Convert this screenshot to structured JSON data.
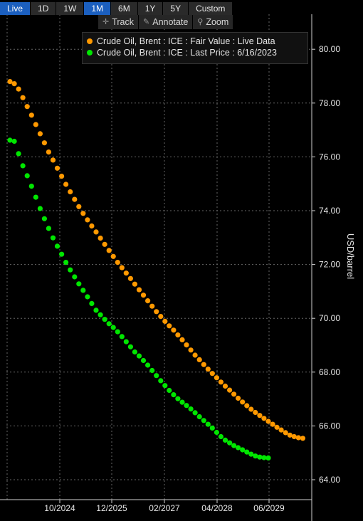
{
  "toolbar": {
    "buttons": [
      "Live",
      "1D",
      "1W",
      "1M",
      "6M",
      "1Y",
      "5Y",
      "Custom"
    ],
    "active": [
      "Live",
      "1M"
    ]
  },
  "tools": {
    "track": "Track",
    "annotate": "Annotate",
    "zoom": "Zoom"
  },
  "colors": {
    "series1": "#ff9900",
    "series2": "#00e600",
    "grid": "#666666"
  },
  "chart_data": {
    "type": "scatter",
    "ylabel": "USD/barrel",
    "ylim": [
      63.5,
      81.5
    ],
    "yticks": [
      "64.00",
      "66.00",
      "68.00",
      "70.00",
      "72.00",
      "74.00",
      "76.00",
      "78.00",
      "80.00"
    ],
    "ytick_values": [
      64,
      66,
      68,
      70,
      72,
      74,
      76,
      78,
      80
    ],
    "xticks": [
      "10/2024",
      "12/2025",
      "02/2027",
      "04/2028",
      "06/2029"
    ],
    "grid": true,
    "legend": "top",
    "x_start": "07/2023",
    "x_step": "1 month",
    "series": [
      {
        "name": "Crude Oil, Brent : ICE : Fair Value : Live Data",
        "values": [
          78.8,
          78.72,
          78.52,
          78.2,
          77.87,
          77.55,
          77.2,
          76.86,
          76.52,
          76.18,
          75.88,
          75.58,
          75.28,
          74.98,
          74.7,
          74.42,
          74.15,
          73.9,
          73.66,
          73.43,
          73.21,
          72.98,
          72.75,
          72.52,
          72.3,
          72.08,
          71.88,
          71.68,
          71.48,
          71.27,
          71.06,
          70.86,
          70.65,
          70.45,
          70.25,
          70.07,
          69.89,
          69.72,
          69.56,
          69.38,
          69.2,
          69.01,
          68.82,
          68.63,
          68.46,
          68.28,
          68.11,
          67.95,
          67.79,
          67.63,
          67.48,
          67.33,
          67.18,
          67.03,
          66.89,
          66.75,
          66.62,
          66.5,
          66.39,
          66.28,
          66.17,
          66.06,
          65.95,
          65.85,
          65.75,
          65.66,
          65.6,
          65.56,
          65.54
        ]
      },
      {
        "name": "Crude Oil, Brent : ICE : Last Price : 6/16/2023",
        "values": [
          76.62,
          76.58,
          76.12,
          75.67,
          75.3,
          74.91,
          74.5,
          74.08,
          73.7,
          73.34,
          72.99,
          72.68,
          72.38,
          72.08,
          71.8,
          71.54,
          71.28,
          71.04,
          70.8,
          70.55,
          70.3,
          70.13,
          69.96,
          69.8,
          69.66,
          69.5,
          69.32,
          69.13,
          68.94,
          68.75,
          68.6,
          68.43,
          68.26,
          68.06,
          67.87,
          67.68,
          67.5,
          67.32,
          67.16,
          67.01,
          66.88,
          66.76,
          66.63,
          66.49,
          66.34,
          66.2,
          66.06,
          65.92,
          65.76,
          65.6,
          65.47,
          65.37,
          65.27,
          65.19,
          65.11,
          65.03,
          64.95,
          64.88,
          64.84,
          64.82,
          64.81
        ]
      }
    ]
  }
}
